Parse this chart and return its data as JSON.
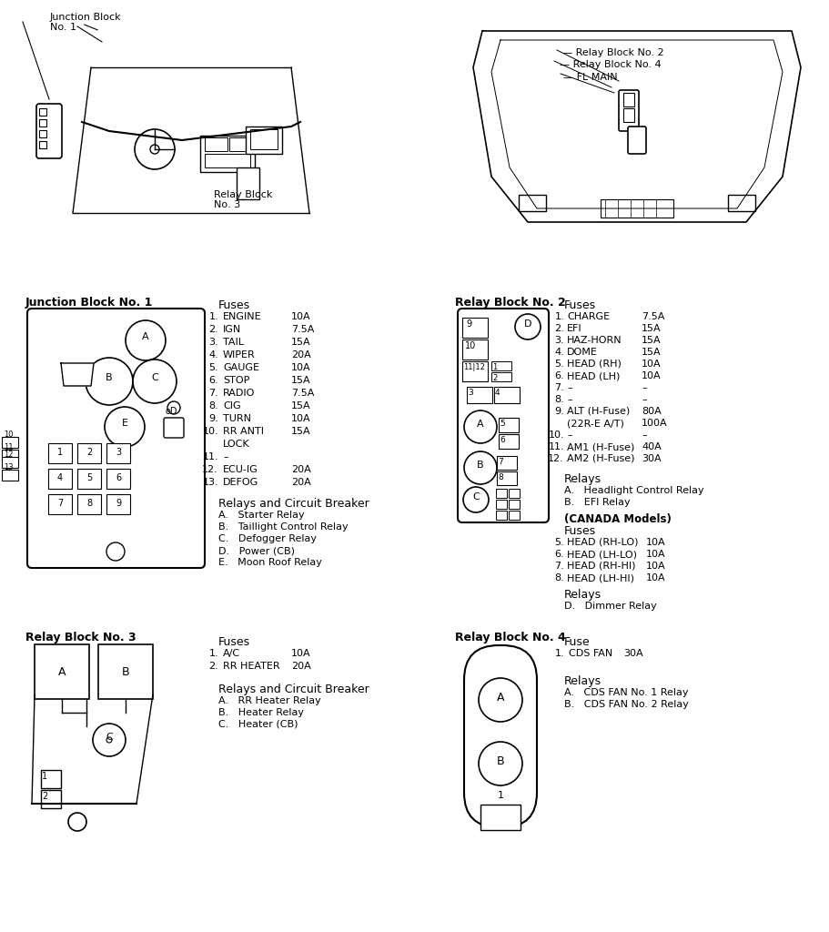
{
  "bg_color": "#ffffff",
  "title_color": "#000000",
  "line_color": "#000000",
  "text_color": "#000000",
  "junction_block1_title": "Junction Block No. 1",
  "junction_block1_fuses_title": "Fuses",
  "junction_block1_fuses": [
    [
      "1.",
      "ENGINE",
      "10A"
    ],
    [
      "2.",
      "IGN",
      "7.5A"
    ],
    [
      "3.",
      "TAIL",
      "15A"
    ],
    [
      "4.",
      "WIPER",
      "20A"
    ],
    [
      "5.",
      "GAUGE",
      "10A"
    ],
    [
      "6.",
      "STOP",
      "15A"
    ],
    [
      "7.",
      "RADIO",
      "7.5A"
    ],
    [
      "8.",
      "CIG",
      "15A"
    ],
    [
      "9.",
      "TURN",
      "10A"
    ],
    [
      "10.",
      "RR ANTI",
      "15A"
    ],
    [
      "",
      "LOCK",
      ""
    ],
    [
      "11.",
      "–",
      ""
    ],
    [
      "12.",
      "ECU-IG",
      "20A"
    ],
    [
      "13.",
      "DEFOG",
      "20A"
    ]
  ],
  "junction_block1_relays_title": "Relays and Circuit Breaker",
  "junction_block1_relays": [
    "A.   Starter Relay",
    "B.   Taillight Control Relay",
    "C.   Defogger Relay",
    "D.   Power (CB)",
    "E.   Moon Roof Relay"
  ],
  "relay_block2_title": "Relay Block No. 2",
  "relay_block2_fuses_title": "Fuses",
  "relay_block2_fuses": [
    [
      "1.",
      "CHARGE",
      "7.5A"
    ],
    [
      "2.",
      "EFI",
      "15A"
    ],
    [
      "3.",
      "HAZ-HORN",
      "15A"
    ],
    [
      "4.",
      "DOME",
      "15A"
    ],
    [
      "5.",
      "HEAD (RH)",
      "10A"
    ],
    [
      "6.",
      "HEAD (LH)",
      "10A"
    ],
    [
      "7.",
      "–",
      "–"
    ],
    [
      "8.",
      "–",
      "–"
    ],
    [
      "9.",
      "ALT (H-Fuse)",
      "80A"
    ],
    [
      "",
      "(22R-E A/T)",
      "100A"
    ],
    [
      "10.",
      "–",
      "–"
    ],
    [
      "11.",
      "AM1 (H-Fuse)",
      "40A"
    ],
    [
      "12.",
      "AM2 (H-Fuse)",
      "30A"
    ]
  ],
  "relay_block2_relays_title": "Relays",
  "relay_block2_relays": [
    "A.   Headlight Control Relay",
    "B.   EFI Relay"
  ],
  "relay_block2_canada_title": "(CANADA Models)",
  "relay_block2_canada_fuses_title": "Fuses",
  "relay_block2_canada_fuses": [
    [
      "5.",
      "HEAD (RH-LO)",
      "10A"
    ],
    [
      "6.",
      "HEAD (LH-LO)",
      "10A"
    ],
    [
      "7.",
      "HEAD (RH-HI)",
      "10A"
    ],
    [
      "8.",
      "HEAD (LH-HI)",
      "10A"
    ]
  ],
  "relay_block2_canada_relays_title": "Relays",
  "relay_block2_canada_relays": [
    "D.   Dimmer Relay"
  ],
  "relay_block3_title": "Relay Block No. 3",
  "relay_block3_fuses_title": "Fuses",
  "relay_block3_fuses": [
    [
      "1.",
      "A/C",
      "10A"
    ],
    [
      "2.",
      "RR HEATER",
      "20A"
    ]
  ],
  "relay_block3_relays_title": "Relays and Circuit Breaker",
  "relay_block3_relays": [
    "A.   RR Heater Relay",
    "B.   Heater Relay",
    "C.   Heater (CB)"
  ],
  "relay_block4_title": "Relay Block No. 4",
  "relay_block4_fuse_title": "Fuse",
  "relay_block4_fuses": [
    [
      "1.",
      "CDS FAN",
      "30A"
    ]
  ],
  "relay_block4_relays_title": "Relays",
  "relay_block4_relays": [
    "A.   CDS FAN No. 1 Relay",
    "B.   CDS FAN No. 2 Relay"
  ]
}
